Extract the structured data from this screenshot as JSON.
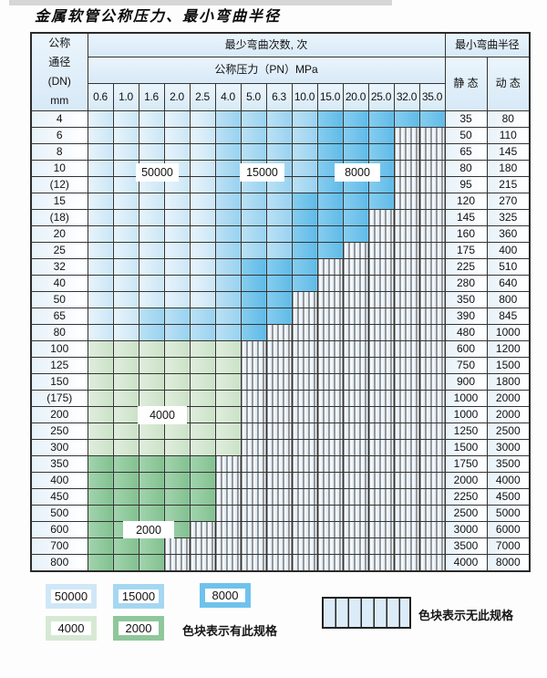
{
  "page_title": "金属软管公称压力、最小弯曲半径",
  "table": {
    "dn_header_lines": [
      "公称",
      "通径",
      "(DN)",
      "mm"
    ],
    "bend_count_title": "最少弯曲次数, 次",
    "pressure_title": "公称压力（PN）MPa",
    "radius_title": "最小弯曲半径",
    "static_label": "静 态",
    "dynamic_label": "动 态",
    "pressures": [
      "0.6",
      "1.0",
      "1.6",
      "2.0",
      "2.5",
      "4.0",
      "5.0",
      "6.3",
      "10.0",
      "15.0",
      "20.0",
      "25.0",
      "32.0",
      "35.0"
    ],
    "cell_legend_meaning": {
      "L": "50000",
      "M": "15000",
      "D": "8000",
      "G": "4000",
      "E": "2000",
      "X": "无此规格"
    },
    "rows": [
      {
        "dn": "4",
        "static": "35",
        "dynamic": "80",
        "cells": [
          "L",
          "L",
          "L",
          "L",
          "L",
          "M",
          "M",
          "M",
          "M",
          "D",
          "D",
          "D",
          "D",
          "D"
        ]
      },
      {
        "dn": "6",
        "static": "50",
        "dynamic": "110",
        "cells": [
          "L",
          "L",
          "L",
          "L",
          "L",
          "M",
          "M",
          "M",
          "M",
          "D",
          "D",
          "D",
          "X",
          "X"
        ]
      },
      {
        "dn": "8",
        "static": "65",
        "dynamic": "145",
        "cells": [
          "L",
          "L",
          "L",
          "L",
          "L",
          "M",
          "M",
          "M",
          "M",
          "D",
          "D",
          "D",
          "X",
          "X"
        ]
      },
      {
        "dn": "10",
        "static": "80",
        "dynamic": "180",
        "cells": [
          "L",
          "L",
          "L",
          "L",
          "L",
          "M",
          "M",
          "M",
          "M",
          "D",
          "D",
          "D",
          "X",
          "X"
        ]
      },
      {
        "dn": "(12)",
        "static": "95",
        "dynamic": "215",
        "cells": [
          "L",
          "L",
          "L",
          "L",
          "L",
          "M",
          "M",
          "M",
          "M",
          "D",
          "D",
          "D",
          "X",
          "X"
        ]
      },
      {
        "dn": "15",
        "static": "120",
        "dynamic": "270",
        "cells": [
          "L",
          "L",
          "L",
          "L",
          "L",
          "M",
          "M",
          "M",
          "D",
          "D",
          "D",
          "D",
          "X",
          "X"
        ]
      },
      {
        "dn": "(18)",
        "static": "145",
        "dynamic": "325",
        "cells": [
          "L",
          "L",
          "L",
          "L",
          "L",
          "M",
          "M",
          "M",
          "D",
          "D",
          "D",
          "X",
          "X",
          "X"
        ]
      },
      {
        "dn": "20",
        "static": "160",
        "dynamic": "360",
        "cells": [
          "L",
          "L",
          "L",
          "L",
          "L",
          "M",
          "M",
          "M",
          "D",
          "D",
          "D",
          "X",
          "X",
          "X"
        ]
      },
      {
        "dn": "25",
        "static": "175",
        "dynamic": "400",
        "cells": [
          "L",
          "L",
          "L",
          "L",
          "L",
          "M",
          "M",
          "M",
          "D",
          "D",
          "X",
          "X",
          "X",
          "X"
        ]
      },
      {
        "dn": "32",
        "static": "225",
        "dynamic": "510",
        "cells": [
          "L",
          "L",
          "L",
          "L",
          "L",
          "M",
          "D",
          "D",
          "D",
          "X",
          "X",
          "X",
          "X",
          "X"
        ]
      },
      {
        "dn": "40",
        "static": "280",
        "dynamic": "640",
        "cells": [
          "L",
          "L",
          "L",
          "L",
          "L",
          "M",
          "D",
          "D",
          "D",
          "X",
          "X",
          "X",
          "X",
          "X"
        ]
      },
      {
        "dn": "50",
        "static": "350",
        "dynamic": "800",
        "cells": [
          "L",
          "L",
          "L",
          "L",
          "L",
          "M",
          "D",
          "D",
          "X",
          "X",
          "X",
          "X",
          "X",
          "X"
        ]
      },
      {
        "dn": "65",
        "static": "390",
        "dynamic": "845",
        "cells": [
          "L",
          "L",
          "M",
          "M",
          "M",
          "M",
          "D",
          "D",
          "X",
          "X",
          "X",
          "X",
          "X",
          "X"
        ]
      },
      {
        "dn": "80",
        "static": "480",
        "dynamic": "1000",
        "cells": [
          "L",
          "L",
          "M",
          "M",
          "M",
          "M",
          "D",
          "X",
          "X",
          "X",
          "X",
          "X",
          "X",
          "X"
        ]
      },
      {
        "dn": "100",
        "static": "600",
        "dynamic": "1200",
        "cells": [
          "G",
          "G",
          "G",
          "G",
          "G",
          "G",
          "X",
          "X",
          "X",
          "X",
          "X",
          "X",
          "X",
          "X"
        ]
      },
      {
        "dn": "125",
        "static": "750",
        "dynamic": "1500",
        "cells": [
          "G",
          "G",
          "G",
          "G",
          "G",
          "G",
          "X",
          "X",
          "X",
          "X",
          "X",
          "X",
          "X",
          "X"
        ]
      },
      {
        "dn": "150",
        "static": "900",
        "dynamic": "1800",
        "cells": [
          "G",
          "G",
          "G",
          "G",
          "G",
          "G",
          "X",
          "X",
          "X",
          "X",
          "X",
          "X",
          "X",
          "X"
        ]
      },
      {
        "dn": "(175)",
        "static": "1000",
        "dynamic": "2000",
        "cells": [
          "G",
          "G",
          "G",
          "G",
          "G",
          "G",
          "X",
          "X",
          "X",
          "X",
          "X",
          "X",
          "X",
          "X"
        ]
      },
      {
        "dn": "200",
        "static": "1000",
        "dynamic": "2000",
        "cells": [
          "G",
          "G",
          "G",
          "G",
          "G",
          "G",
          "X",
          "X",
          "X",
          "X",
          "X",
          "X",
          "X",
          "X"
        ]
      },
      {
        "dn": "250",
        "static": "1250",
        "dynamic": "2500",
        "cells": [
          "G",
          "G",
          "G",
          "G",
          "G",
          "G",
          "X",
          "X",
          "X",
          "X",
          "X",
          "X",
          "X",
          "X"
        ]
      },
      {
        "dn": "300",
        "static": "1500",
        "dynamic": "3000",
        "cells": [
          "G",
          "G",
          "G",
          "G",
          "G",
          "G",
          "X",
          "X",
          "X",
          "X",
          "X",
          "X",
          "X",
          "X"
        ]
      },
      {
        "dn": "350",
        "static": "1750",
        "dynamic": "3500",
        "cells": [
          "E",
          "E",
          "E",
          "E",
          "E",
          "X",
          "X",
          "X",
          "X",
          "X",
          "X",
          "X",
          "X",
          "X"
        ]
      },
      {
        "dn": "400",
        "static": "2000",
        "dynamic": "4000",
        "cells": [
          "E",
          "E",
          "E",
          "E",
          "E",
          "X",
          "X",
          "X",
          "X",
          "X",
          "X",
          "X",
          "X",
          "X"
        ]
      },
      {
        "dn": "450",
        "static": "2250",
        "dynamic": "4500",
        "cells": [
          "E",
          "E",
          "E",
          "E",
          "E",
          "X",
          "X",
          "X",
          "X",
          "X",
          "X",
          "X",
          "X",
          "X"
        ]
      },
      {
        "dn": "500",
        "static": "2500",
        "dynamic": "5000",
        "cells": [
          "E",
          "E",
          "E",
          "E",
          "E",
          "X",
          "X",
          "X",
          "X",
          "X",
          "X",
          "X",
          "X",
          "X"
        ]
      },
      {
        "dn": "600",
        "static": "3000",
        "dynamic": "6000",
        "cells": [
          "E",
          "E",
          "E",
          "E",
          "X",
          "X",
          "X",
          "X",
          "X",
          "X",
          "X",
          "X",
          "X",
          "X"
        ]
      },
      {
        "dn": "700",
        "static": "3500",
        "dynamic": "7000",
        "cells": [
          "E",
          "E",
          "E",
          "X",
          "X",
          "X",
          "X",
          "X",
          "X",
          "X",
          "X",
          "X",
          "X",
          "X"
        ]
      },
      {
        "dn": "800",
        "static": "4000",
        "dynamic": "8000",
        "cells": [
          "E",
          "E",
          "E",
          "X",
          "X",
          "X",
          "X",
          "X",
          "X",
          "X",
          "X",
          "X",
          "X",
          "X"
        ]
      }
    ]
  },
  "region_labels": [
    "50000",
    "15000",
    "8000",
    "4000",
    "2000"
  ],
  "legend": {
    "items": [
      {
        "label": "50000",
        "color": "#cfe7f7"
      },
      {
        "label": "15000",
        "color": "#a5d7f2"
      },
      {
        "label": "8000",
        "color": "#6fc2ec"
      },
      {
        "label": "4000",
        "color": "#d6e9d4"
      },
      {
        "label": "2000",
        "color": "#8fc79b"
      }
    ],
    "has_spec_note": "色块表示有此规格",
    "no_spec_note": "色块表示无此规格"
  },
  "colors": {
    "bend_50000": "#cfe7f7",
    "bend_15000": "#a5d7f2",
    "bend_8000": "#6fc2ec",
    "bend_4000": "#d6e9d4",
    "bend_2000": "#8fc79b",
    "grid_line": "#343434",
    "header_fill": "#ddeef9"
  }
}
